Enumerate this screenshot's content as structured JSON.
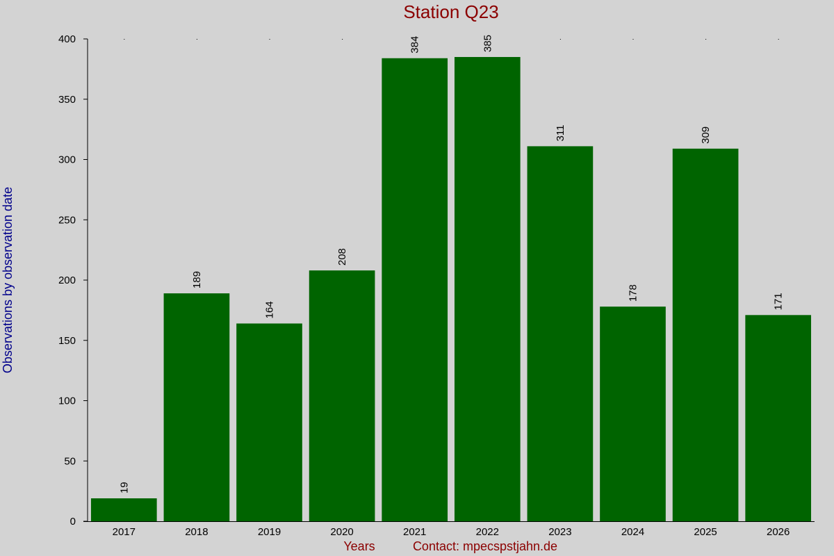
{
  "colors": {
    "background": "#d3d3d3",
    "bar": "#006400",
    "title": "#8b0000",
    "ylabel": "#00008b",
    "footer": "#8b0000",
    "axis": "#000000"
  },
  "chart_data": {
    "type": "bar",
    "title": "Station Q23",
    "xlabel": "Years",
    "ylabel": "Observations by observation date",
    "footer_note": "Contact: mpecspstjahn.de",
    "categories": [
      "2017",
      "2018",
      "2019",
      "2020",
      "2021",
      "2022",
      "2023",
      "2024",
      "2025",
      "2026"
    ],
    "values": [
      19,
      189,
      164,
      208,
      384,
      385,
      311,
      178,
      309,
      171
    ],
    "ylim": [
      0,
      400
    ],
    "yticks": [
      0,
      50,
      100,
      150,
      200,
      250,
      300,
      350,
      400
    ],
    "grid": false,
    "legend": "none",
    "data_labels": true
  }
}
